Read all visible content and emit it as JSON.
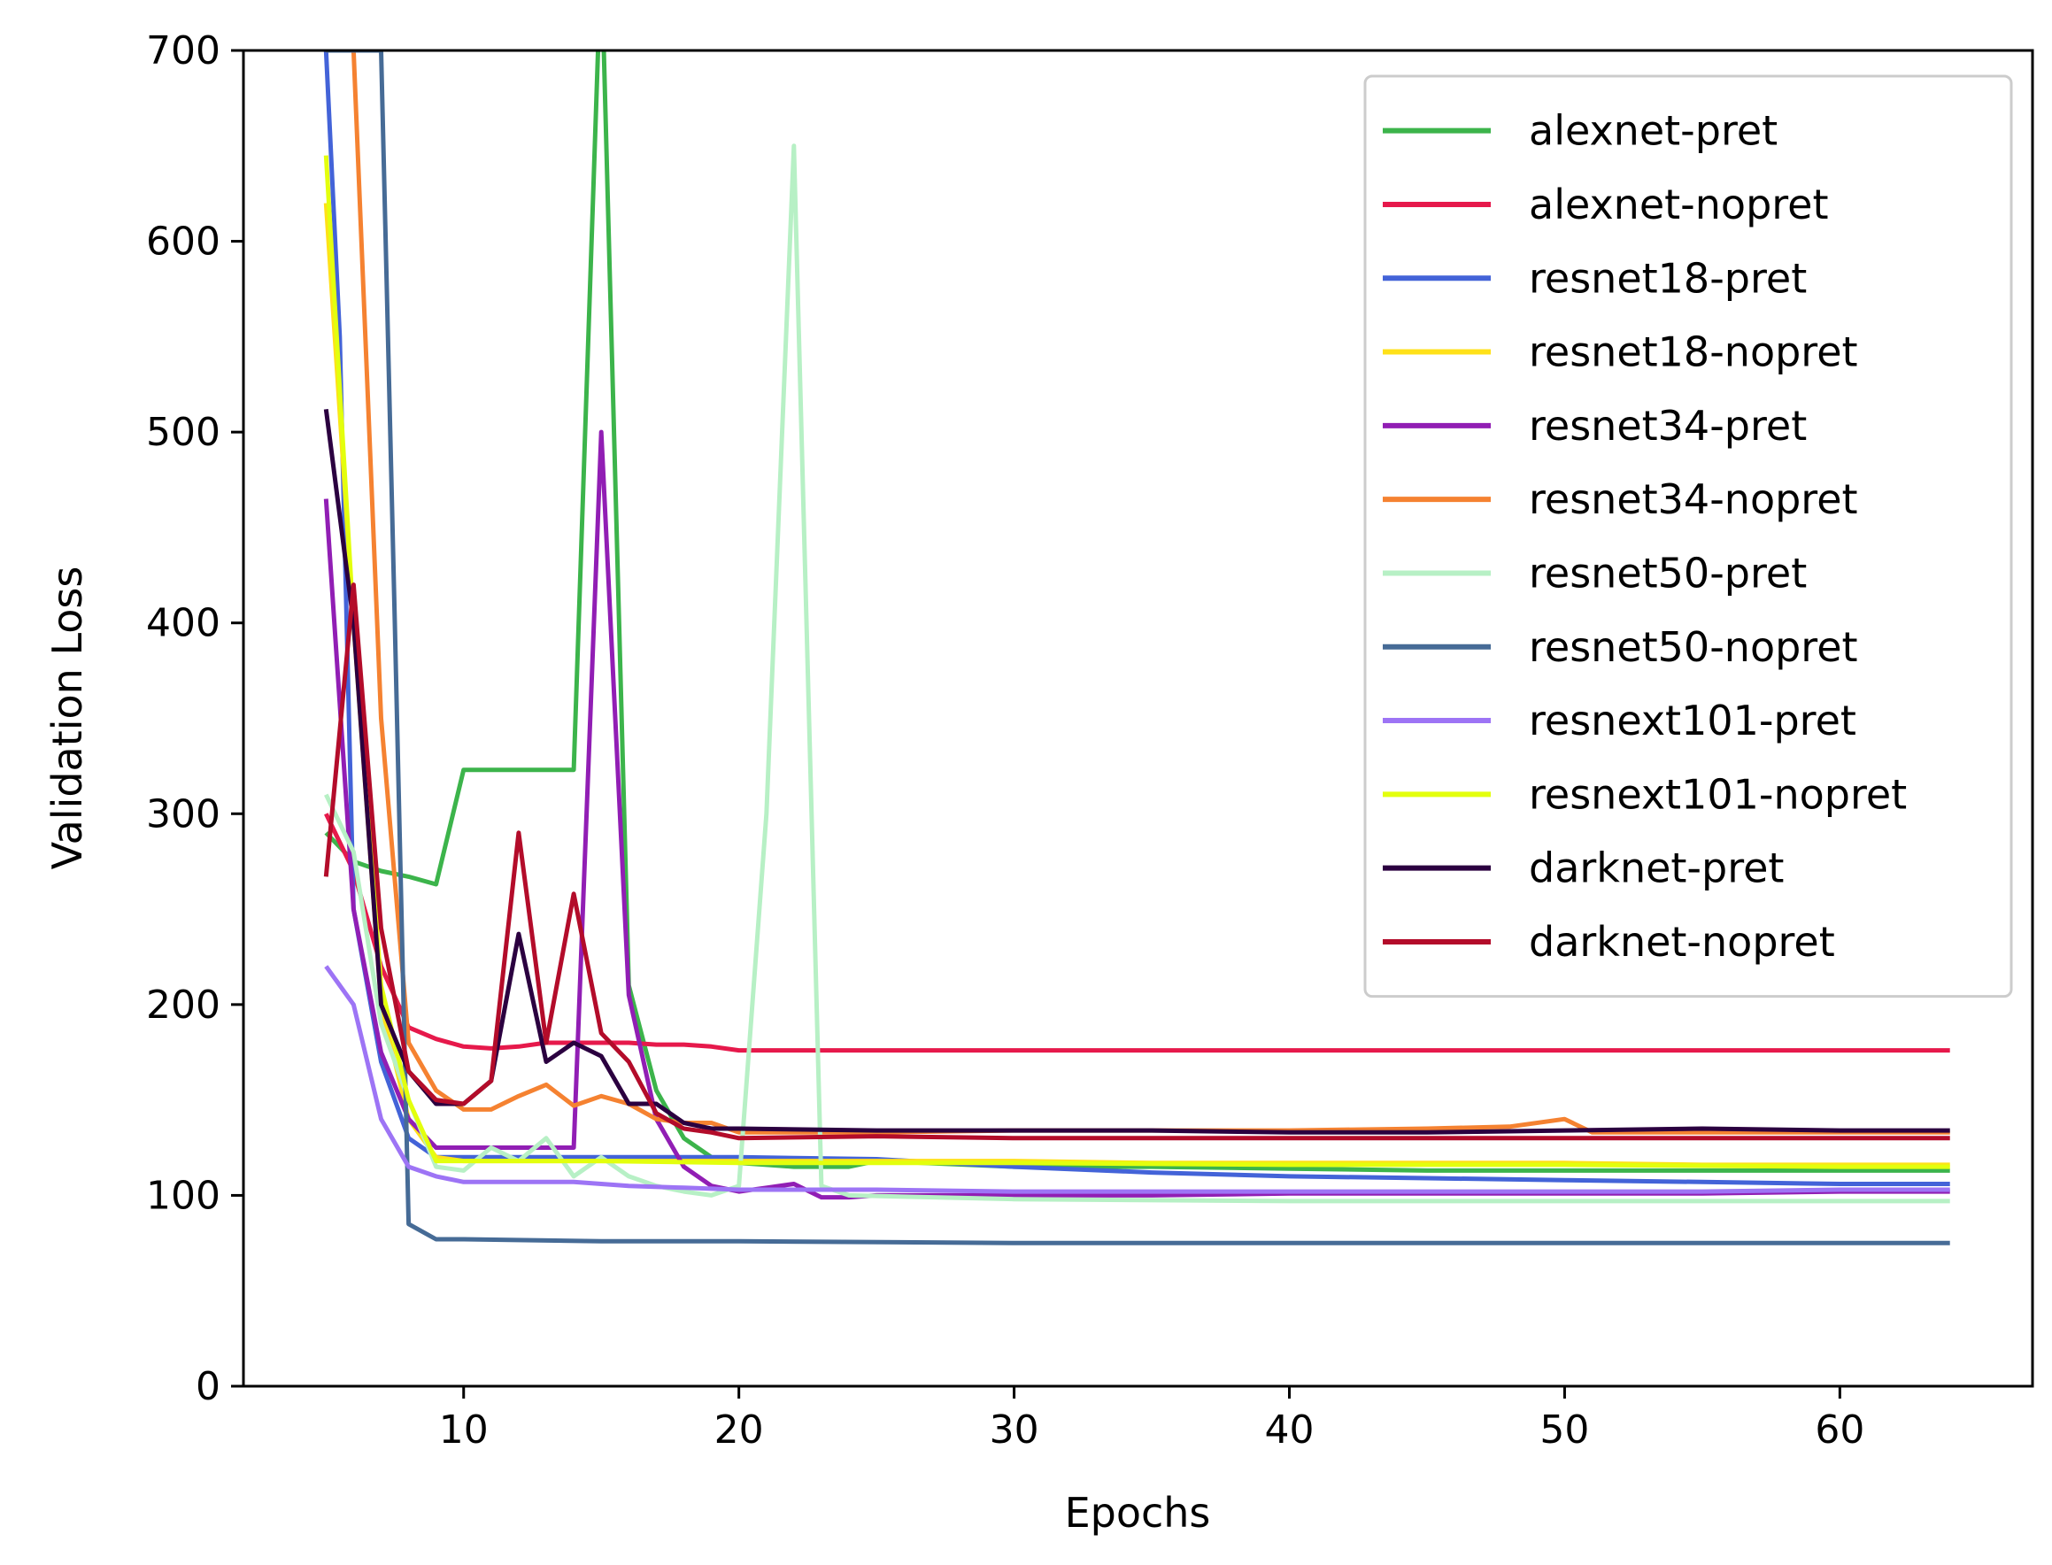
{
  "chart_data": {
    "type": "line",
    "xlabel": "Epochs",
    "ylabel": "Validation Loss",
    "xlim": [
      2,
      67
    ],
    "ylim": [
      0,
      700
    ],
    "xticks": [
      10,
      20,
      30,
      40,
      50,
      60
    ],
    "yticks": [
      0,
      100,
      200,
      300,
      400,
      500,
      600,
      700
    ],
    "legend_position": "top-right",
    "grid": false,
    "series": [
      {
        "name": "alexnet-pret",
        "color": "#3cb44b",
        "points": [
          [
            5,
            290
          ],
          [
            6,
            275
          ],
          [
            7,
            270
          ],
          [
            8,
            267
          ],
          [
            9,
            263
          ],
          [
            10,
            323
          ],
          [
            11,
            323
          ],
          [
            12,
            323
          ],
          [
            13,
            323
          ],
          [
            14,
            323
          ],
          [
            15,
            750
          ],
          [
            16,
            210
          ],
          [
            17,
            155
          ],
          [
            18,
            130
          ],
          [
            19,
            120
          ],
          [
            20,
            117
          ],
          [
            21,
            116
          ],
          [
            22,
            115
          ],
          [
            23,
            115
          ],
          [
            24,
            115
          ],
          [
            25,
            118
          ],
          [
            30,
            115
          ],
          [
            35,
            115
          ],
          [
            40,
            114
          ],
          [
            45,
            113
          ],
          [
            50,
            113
          ],
          [
            55,
            113
          ],
          [
            60,
            113
          ],
          [
            64,
            113
          ]
        ]
      },
      {
        "name": "alexnet-nopret",
        "color": "#e6194b",
        "points": [
          [
            5,
            300
          ],
          [
            6,
            270
          ],
          [
            7,
            220
          ],
          [
            8,
            188
          ],
          [
            9,
            182
          ],
          [
            10,
            178
          ],
          [
            11,
            177
          ],
          [
            12,
            178
          ],
          [
            13,
            180
          ],
          [
            14,
            180
          ],
          [
            15,
            180
          ],
          [
            16,
            180
          ],
          [
            17,
            179
          ],
          [
            18,
            179
          ],
          [
            19,
            178
          ],
          [
            20,
            176
          ],
          [
            25,
            176
          ],
          [
            30,
            176
          ],
          [
            35,
            176
          ],
          [
            40,
            176
          ],
          [
            45,
            176
          ],
          [
            50,
            176
          ],
          [
            55,
            176
          ],
          [
            60,
            176
          ],
          [
            64,
            176
          ]
        ]
      },
      {
        "name": "resnet18-pret",
        "color": "#4363d8",
        "points": [
          [
            5,
            700
          ],
          [
            5.5,
            550
          ],
          [
            6,
            250
          ],
          [
            7,
            170
          ],
          [
            8,
            130
          ],
          [
            9,
            120
          ],
          [
            10,
            120
          ],
          [
            15,
            120
          ],
          [
            20,
            120
          ],
          [
            25,
            119
          ],
          [
            30,
            115
          ],
          [
            35,
            112
          ],
          [
            40,
            110
          ],
          [
            45,
            109
          ],
          [
            50,
            108
          ],
          [
            55,
            107
          ],
          [
            60,
            106
          ],
          [
            64,
            106
          ]
        ]
      },
      {
        "name": "resnet18-nopret",
        "color": "#ffe119",
        "points": [
          [
            5,
            620
          ],
          [
            6,
            400
          ],
          [
            7,
            200
          ],
          [
            8,
            140
          ],
          [
            9,
            120
          ],
          [
            10,
            118
          ],
          [
            15,
            118
          ],
          [
            20,
            118
          ],
          [
            25,
            118
          ],
          [
            30,
            118
          ],
          [
            35,
            117
          ],
          [
            40,
            117
          ],
          [
            45,
            117
          ],
          [
            50,
            117
          ],
          [
            55,
            116
          ],
          [
            60,
            116
          ],
          [
            64,
            116
          ]
        ]
      },
      {
        "name": "resnet34-pret",
        "color": "#911eb4",
        "points": [
          [
            5,
            465
          ],
          [
            6,
            250
          ],
          [
            7,
            175
          ],
          [
            8,
            140
          ],
          [
            9,
            125
          ],
          [
            10,
            125
          ],
          [
            11,
            125
          ],
          [
            12,
            125
          ],
          [
            13,
            125
          ],
          [
            14,
            125
          ],
          [
            15,
            500
          ],
          [
            16,
            205
          ],
          [
            17,
            140
          ],
          [
            18,
            115
          ],
          [
            19,
            105
          ],
          [
            20,
            102
          ],
          [
            21,
            104
          ],
          [
            22,
            106
          ],
          [
            23,
            99
          ],
          [
            24,
            99
          ],
          [
            25,
            100
          ],
          [
            30,
            100
          ],
          [
            35,
            100
          ],
          [
            40,
            101
          ],
          [
            45,
            101
          ],
          [
            50,
            101
          ],
          [
            55,
            101
          ],
          [
            60,
            102
          ],
          [
            64,
            102
          ]
        ]
      },
      {
        "name": "resnet34-nopret",
        "color": "#f58231",
        "points": [
          [
            5,
            700
          ],
          [
            6,
            700
          ],
          [
            7,
            350
          ],
          [
            8,
            180
          ],
          [
            9,
            155
          ],
          [
            10,
            145
          ],
          [
            11,
            145
          ],
          [
            12,
            152
          ],
          [
            13,
            158
          ],
          [
            14,
            147
          ],
          [
            15,
            152
          ],
          [
            16,
            148
          ],
          [
            17,
            140
          ],
          [
            18,
            138
          ],
          [
            19,
            138
          ],
          [
            20,
            133
          ],
          [
            25,
            133
          ],
          [
            30,
            134
          ],
          [
            35,
            134
          ],
          [
            40,
            134
          ],
          [
            45,
            135
          ],
          [
            48,
            136
          ],
          [
            50,
            140
          ],
          [
            51,
            133
          ],
          [
            55,
            133
          ],
          [
            60,
            133
          ],
          [
            64,
            133
          ]
        ]
      },
      {
        "name": "resnet50-pret",
        "color": "#b7f0c5",
        "points": [
          [
            5,
            310
          ],
          [
            6,
            280
          ],
          [
            7,
            190
          ],
          [
            8,
            150
          ],
          [
            9,
            115
          ],
          [
            10,
            113
          ],
          [
            11,
            125
          ],
          [
            12,
            118
          ],
          [
            13,
            130
          ],
          [
            14,
            110
          ],
          [
            15,
            120
          ],
          [
            16,
            110
          ],
          [
            17,
            105
          ],
          [
            18,
            102
          ],
          [
            19,
            100
          ],
          [
            20,
            105
          ],
          [
            21,
            300
          ],
          [
            22,
            650
          ],
          [
            23,
            105
          ],
          [
            24,
            100
          ],
          [
            30,
            98
          ],
          [
            40,
            97
          ],
          [
            50,
            97
          ],
          [
            60,
            97
          ],
          [
            64,
            97
          ]
        ]
      },
      {
        "name": "resnet50-nopret",
        "color": "#466b96",
        "points": [
          [
            5,
            700
          ],
          [
            6,
            700
          ],
          [
            7,
            700
          ],
          [
            7.5,
            400
          ],
          [
            8,
            85
          ],
          [
            9,
            77
          ],
          [
            10,
            77
          ],
          [
            15,
            76
          ],
          [
            20,
            76
          ],
          [
            30,
            75
          ],
          [
            40,
            75
          ],
          [
            50,
            75
          ],
          [
            60,
            75
          ],
          [
            64,
            75
          ]
        ]
      },
      {
        "name": "resnext101-pret",
        "color": "#9d74f5",
        "points": [
          [
            5,
            220
          ],
          [
            6,
            200
          ],
          [
            7,
            140
          ],
          [
            8,
            115
          ],
          [
            9,
            110
          ],
          [
            10,
            107
          ],
          [
            12,
            107
          ],
          [
            14,
            107
          ],
          [
            16,
            105
          ],
          [
            18,
            104
          ],
          [
            20,
            103
          ],
          [
            25,
            103
          ],
          [
            30,
            102
          ],
          [
            35,
            102
          ],
          [
            40,
            102
          ],
          [
            45,
            102
          ],
          [
            50,
            102
          ],
          [
            55,
            102
          ],
          [
            60,
            103
          ],
          [
            64,
            103
          ]
        ]
      },
      {
        "name": "resnext101-nopret",
        "color": "#e3ff0d",
        "points": [
          [
            5,
            645
          ],
          [
            6,
            400
          ],
          [
            7,
            210
          ],
          [
            8,
            150
          ],
          [
            9,
            118
          ],
          [
            10,
            118
          ],
          [
            15,
            118
          ],
          [
            20,
            117
          ],
          [
            30,
            117
          ],
          [
            40,
            116
          ],
          [
            50,
            116
          ],
          [
            60,
            115
          ],
          [
            64,
            115
          ]
        ]
      },
      {
        "name": "darknet-pret",
        "color": "#2b0040",
        "points": [
          [
            5,
            512
          ],
          [
            6,
            400
          ],
          [
            7,
            200
          ],
          [
            8,
            165
          ],
          [
            9,
            148
          ],
          [
            10,
            148
          ],
          [
            11,
            160
          ],
          [
            12,
            237
          ],
          [
            13,
            170
          ],
          [
            14,
            180
          ],
          [
            15,
            173
          ],
          [
            16,
            148
          ],
          [
            17,
            148
          ],
          [
            18,
            138
          ],
          [
            19,
            135
          ],
          [
            20,
            135
          ],
          [
            25,
            134
          ],
          [
            30,
            134
          ],
          [
            35,
            134
          ],
          [
            40,
            133
          ],
          [
            45,
            133
          ],
          [
            50,
            134
          ],
          [
            55,
            135
          ],
          [
            60,
            134
          ],
          [
            64,
            134
          ]
        ]
      },
      {
        "name": "darknet-nopret",
        "color": "#b30c2a",
        "points": [
          [
            5,
            267
          ],
          [
            6,
            420
          ],
          [
            7,
            240
          ],
          [
            8,
            165
          ],
          [
            9,
            150
          ],
          [
            10,
            148
          ],
          [
            11,
            160
          ],
          [
            12,
            290
          ],
          [
            13,
            180
          ],
          [
            14,
            258
          ],
          [
            15,
            185
          ],
          [
            16,
            170
          ],
          [
            17,
            143
          ],
          [
            18,
            135
          ],
          [
            19,
            133
          ],
          [
            20,
            130
          ],
          [
            25,
            131
          ],
          [
            30,
            130
          ],
          [
            35,
            130
          ],
          [
            40,
            130
          ],
          [
            45,
            130
          ],
          [
            50,
            130
          ],
          [
            55,
            130
          ],
          [
            60,
            130
          ],
          [
            64,
            130
          ]
        ]
      }
    ]
  }
}
